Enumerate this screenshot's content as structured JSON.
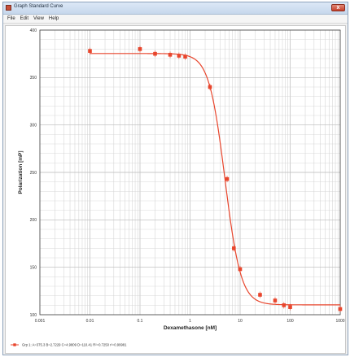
{
  "window": {
    "title": "Graph Standard Curve",
    "close_glyph": "x"
  },
  "menu": [
    "File",
    "Edit",
    "View",
    "Help"
  ],
  "colors": {
    "series": "#e8452c",
    "grid": "#cfcfcf",
    "axis": "#444444"
  },
  "chart_data": {
    "type": "scatter",
    "xlabel": "Dexamethasone [nM]",
    "ylabel": "Polarization [mP]",
    "x_scale": "log",
    "xlim": [
      0.001,
      1000
    ],
    "ylim": [
      100,
      400
    ],
    "x_ticks": [
      0.001,
      0.01,
      0.1,
      1,
      10,
      100,
      1000
    ],
    "x_tick_labels": [
      "0.001",
      "0.01",
      "0.1",
      "1",
      "10",
      "100",
      "1000"
    ],
    "y_ticks": [
      100,
      150,
      200,
      250,
      300,
      350,
      400
    ],
    "y_tick_labels": [
      "100",
      "150",
      "200",
      "250",
      "300",
      "350",
      "400"
    ],
    "grid": true,
    "legend_position": "bottom-left",
    "series": [
      {
        "name": "Grp 1: A=375.3 B=2.7229 C=4.9809 D=110.41 R²=0.7250 r²=0.99981",
        "points": [
          {
            "x": 0.01,
            "y": 378
          },
          {
            "x": 0.1,
            "y": 380
          },
          {
            "x": 0.2,
            "y": 375
          },
          {
            "x": 0.4,
            "y": 374
          },
          {
            "x": 0.6,
            "y": 373
          },
          {
            "x": 0.8,
            "y": 372
          },
          {
            "x": 2.5,
            "y": 340
          },
          {
            "x": 5.5,
            "y": 243
          },
          {
            "x": 7.5,
            "y": 170
          },
          {
            "x": 10,
            "y": 148
          },
          {
            "x": 25,
            "y": 121
          },
          {
            "x": 50,
            "y": 115
          },
          {
            "x": 75,
            "y": 110
          },
          {
            "x": 100,
            "y": 108
          },
          {
            "x": 1000,
            "y": 106
          }
        ],
        "fit": {
          "A": 375.3,
          "B": 2.7229,
          "C": 4.9809,
          "D": 110.41
        }
      }
    ]
  }
}
